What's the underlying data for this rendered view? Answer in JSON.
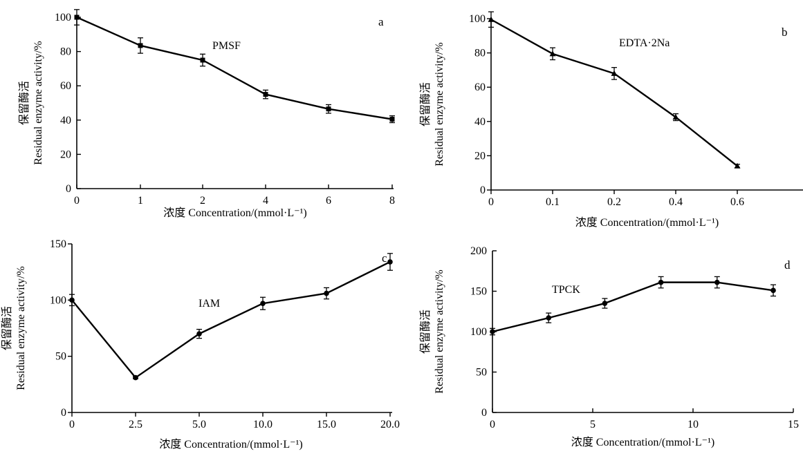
{
  "chart_data": [
    {
      "type": "line",
      "panel_label": "a",
      "annotation": "PMSF",
      "xlabel": "浓度 Concentration/(mmol·L⁻¹)",
      "ylabel_zh": "保留酶活",
      "ylabel_en": "Residual enzyme activity/%",
      "x_scale": "categorical",
      "categories": [
        "0",
        "1",
        "2",
        "4",
        "6",
        "8"
      ],
      "x": [
        0,
        1,
        2,
        4,
        6,
        8
      ],
      "values": [
        100,
        83.5,
        75,
        55,
        46.5,
        40.5
      ],
      "errors": [
        4.5,
        4.5,
        3.5,
        2.5,
        2.5,
        2
      ],
      "marker": "square",
      "ylim": [
        0,
        100
      ],
      "yticks": [
        0,
        20,
        40,
        60,
        80,
        100
      ],
      "grid": false
    },
    {
      "type": "line",
      "panel_label": "b",
      "annotation": "EDTA·2Na",
      "xlabel": "浓度 Concentration/(mmol·L⁻¹)",
      "ylabel_zh": "保留酶活",
      "ylabel_en": "Residual enzyme activity/%",
      "x_scale": "categorical",
      "categories": [
        "0",
        "0.1",
        "0.2",
        "0.4",
        "0.6"
      ],
      "x": [
        0,
        0.1,
        0.2,
        0.4,
        0.6
      ],
      "values": [
        99.5,
        79.5,
        68,
        42.5,
        14
      ],
      "errors": [
        4.5,
        3.5,
        3.5,
        2,
        1
      ],
      "marker": "triangle",
      "ylim": [
        0,
        100
      ],
      "yticks": [
        0,
        20,
        40,
        60,
        80,
        100
      ],
      "grid": false
    },
    {
      "type": "line",
      "panel_label": "c",
      "annotation": "IAM",
      "xlabel": "浓度 Concentration/(mmol·L⁻¹)",
      "ylabel_zh": "保留酶活",
      "ylabel_en": "Residual enzyme activity/%",
      "x_scale": "categorical",
      "categories": [
        "0",
        "2.5",
        "5.0",
        "10.0",
        "15.0",
        "20.0"
      ],
      "x": [
        0,
        2.5,
        5.0,
        10.0,
        15.0,
        20.0
      ],
      "values": [
        100,
        31,
        70,
        97,
        106,
        134
      ],
      "errors": [
        5,
        1,
        4,
        5.5,
        5,
        7.5
      ],
      "marker": "circle",
      "ylim": [
        0,
        150
      ],
      "yticks": [
        0,
        50,
        100,
        150
      ],
      "grid": false
    },
    {
      "type": "line",
      "panel_label": "d",
      "annotation": "TPCK",
      "xlabel": "浓度 Concentration/(mmol·L⁻¹)",
      "ylabel_zh": "保留酶活",
      "ylabel_en": "Residual enzyme activity/%",
      "x_scale": "linear",
      "x": [
        0,
        2.8,
        5.6,
        8.4,
        11.2,
        14
      ],
      "values": [
        100,
        117,
        135,
        161,
        161,
        151
      ],
      "errors": [
        4,
        6,
        6,
        7,
        7,
        7
      ],
      "marker": "circle",
      "xlim": [
        0,
        15
      ],
      "xticks": [
        0,
        5,
        10,
        15
      ],
      "ylim": [
        0,
        200
      ],
      "yticks": [
        0,
        50,
        100,
        150,
        200
      ],
      "grid": false
    }
  ]
}
